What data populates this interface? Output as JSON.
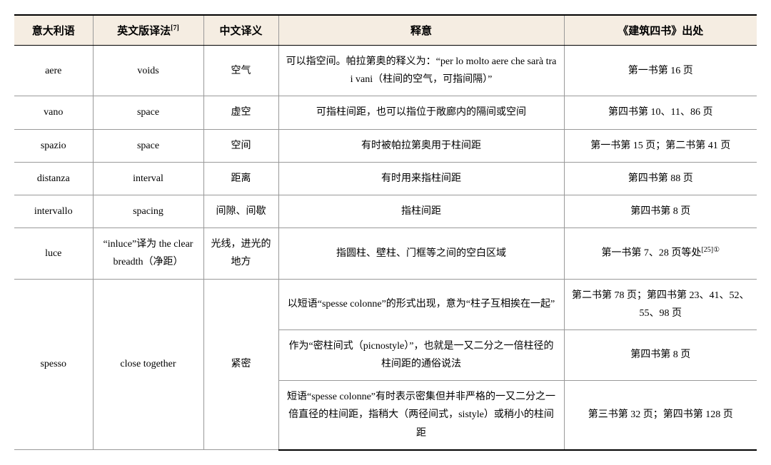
{
  "headers": {
    "italian": "意大利语",
    "english": "英文版译法",
    "english_sup": "[7]",
    "chinese": "中文译义",
    "definition": "释意",
    "source": "《建筑四书》出处"
  },
  "rows": [
    {
      "it": "aere",
      "en": "voids",
      "cn": "空气",
      "def": "可以指空间。帕拉第奥的释义为：“per lo molto aere che sarà tra i vani（柱间的空气，可指间隔）”",
      "src": "第一书第 16 页"
    },
    {
      "it": "vano",
      "en": "space",
      "cn": "虚空",
      "def": "可指柱间距，也可以指位于敞廊内的隔间或空间",
      "src": "第四书第 10、11、86 页"
    },
    {
      "it": "spazio",
      "en": "space",
      "cn": "空间",
      "def": "有时被帕拉第奥用于柱间距",
      "src": "第一书第 15 页；第二书第 41 页"
    },
    {
      "it": "distanza",
      "en": "interval",
      "cn": "距离",
      "def": "有时用来指柱间距",
      "src": "第四书第 88 页"
    },
    {
      "it": "intervallo",
      "en": "spacing",
      "cn": "间隙、间歇",
      "def": "指柱间距",
      "src": "第四书第 8 页"
    },
    {
      "it": "luce",
      "en": "“inluce”译为 the clear breadth（净距）",
      "cn": "光线，进光的地方",
      "def": "指圆柱、壁柱、门框等之间的空白区域",
      "src": "第一书第 7、28 页等处",
      "src_sup": "[25]①"
    }
  ],
  "spesso": {
    "it": "spesso",
    "en": "close together",
    "cn": "紧密",
    "variants": [
      {
        "def": "以短语“spesse colonne”的形式出现，意为“柱子互相挨在一起”",
        "src": "第二书第 78 页；第四书第 23、41、52、55、98 页"
      },
      {
        "def": "作为“密柱间式（picnostyle）”，也就是一又二分之一倍柱径的柱间距的通俗说法",
        "src": "第四书第 8 页"
      },
      {
        "def": "短语“spesse colonne”有时表示密集但并非严格的一又二分之一倍直径的柱间距，指稍大（两径间式，sistyle）或稍小的柱间距",
        "src": "第三书第 32 页；第四书第 128 页"
      }
    ]
  }
}
